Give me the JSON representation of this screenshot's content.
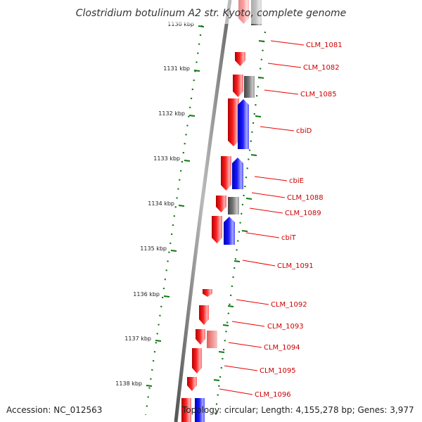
{
  "title": "Clostridium botulinum A2 str. Kyoto, complete genome",
  "accession": "Accession: NC_012563",
  "topology": "Topology: circular; Length: 4,155,278 bp; Genes: 3,977",
  "colors": {
    "forward_gene": "#ee1111",
    "reverse_gene": "#1111ee",
    "other_gene": "#777777",
    "ticks": "#117711",
    "backbone": "#777777",
    "gene_label": "#cc0000",
    "leader_line": "#ee0000"
  },
  "kbp_ticks": [
    "1130 kbp",
    "1131 kbp",
    "1132 kbp",
    "1133 kbp",
    "1134 kbp",
    "1135 kbp",
    "1136 kbp",
    "1137 kbp",
    "1138 kbp"
  ],
  "gene_labels": [
    "CLM_1081",
    "CLM_1082",
    "CLM_1085",
    "cbiD",
    "cbiE",
    "CLM_1088",
    "CLM_1089",
    "cbiT",
    "CLM_1091",
    "CLM_1092",
    "CLM_1093",
    "CLM_1094",
    "CLM_1095",
    "CLM_1096"
  ]
}
